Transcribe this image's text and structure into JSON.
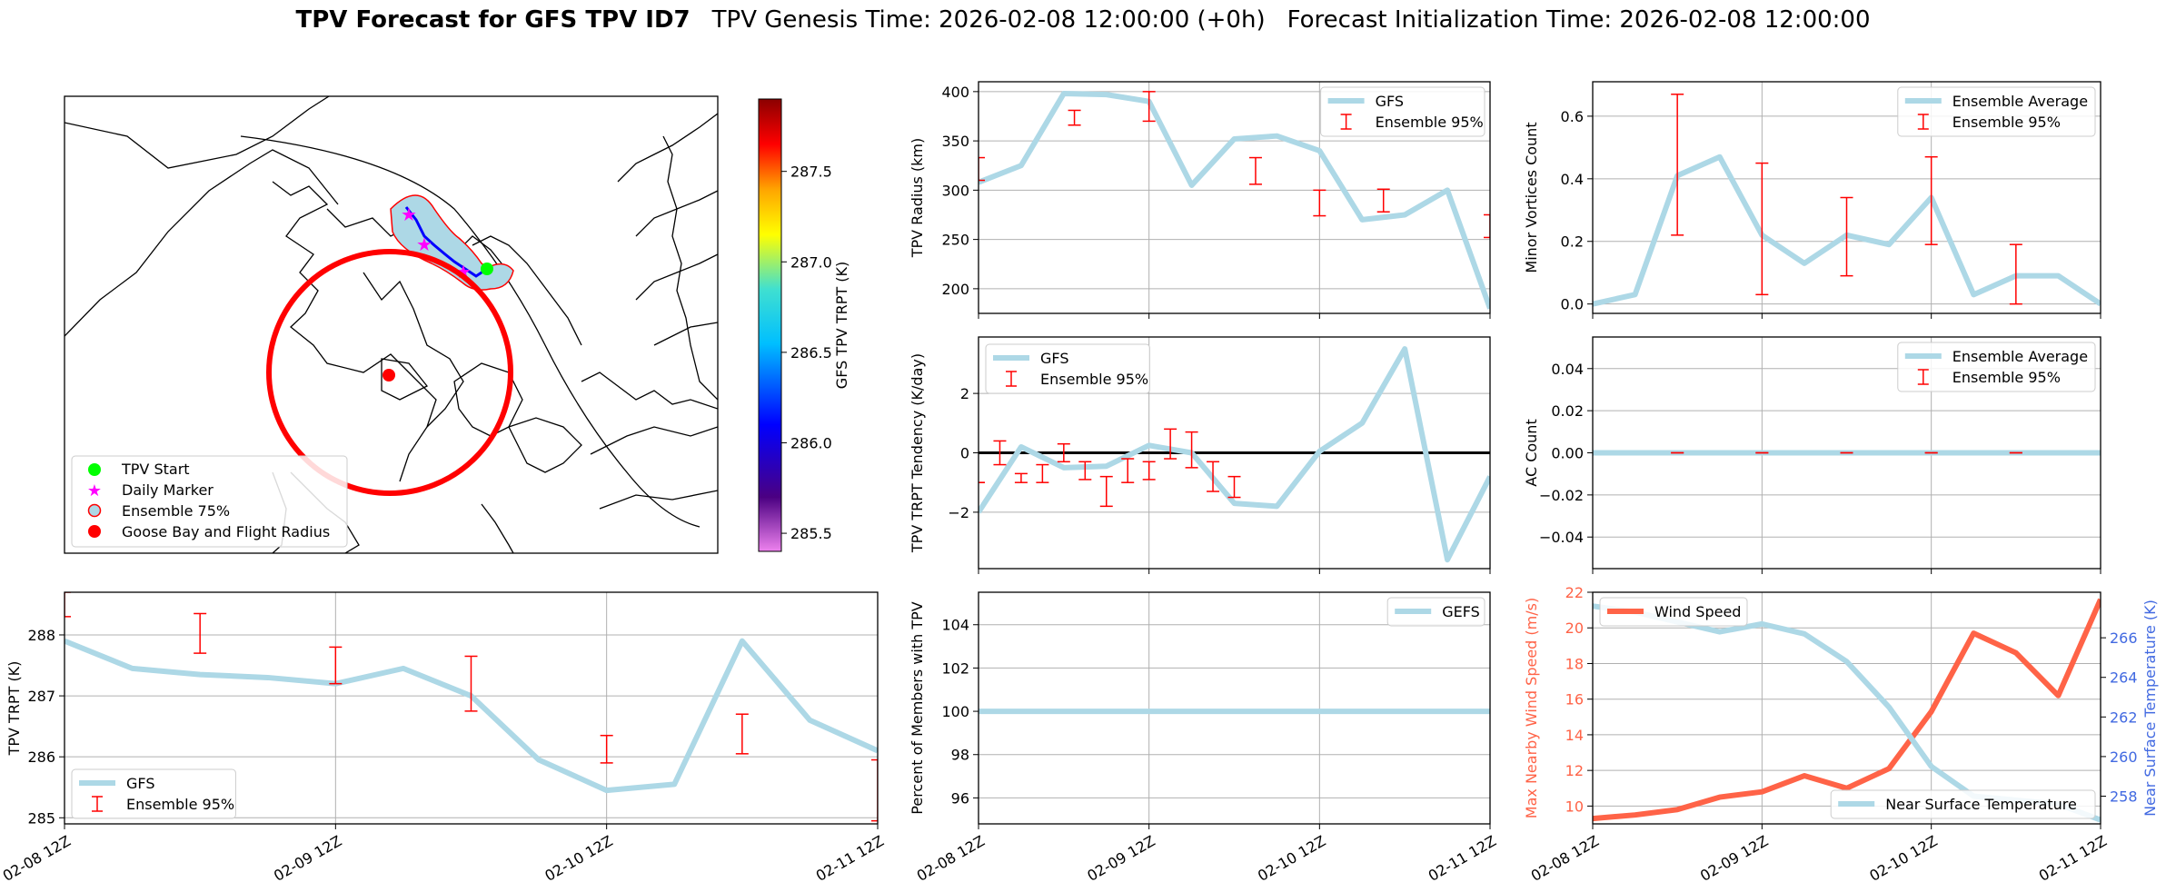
{
  "header": {
    "title_bold": "TPV Forecast for GFS TPV ID7",
    "genesis": "TPV Genesis Time: 2026-02-08 12:00:00 (+0h)",
    "init": "Forecast Initialization Time: 2026-02-08 12:00:00"
  },
  "time_ticks": [
    "02-08 12Z",
    "02-09 12Z",
    "02-10 12Z",
    "02-11 12Z"
  ],
  "colors": {
    "gfs_line": "#add8e6",
    "errorbar": "#ff0000",
    "wind": "#ff6347",
    "temp_axis": "#4169e1",
    "track": "#0000ff",
    "start": "#00ff00",
    "marker": "#ff00ff",
    "goose": "#ff0000"
  },
  "map": {
    "legend": [
      "TPV Start",
      "Daily Marker",
      "Ensemble 75%",
      "Goose Bay and Flight Radius"
    ],
    "colorbar": {
      "label": "GFS TPV TRPT (K)",
      "ticks": [
        "285.5",
        "286.0",
        "286.5",
        "287.0",
        "287.5"
      ],
      "tick_values": [
        285.5,
        286.0,
        286.5,
        287.0,
        287.5
      ],
      "range": [
        285.4,
        287.9
      ]
    }
  },
  "chart_data": [
    {
      "id": "radius",
      "type": "line",
      "ylabel": "TPV Radius (km)",
      "xlim": [
        0,
        72
      ],
      "ylim": [
        175,
        410
      ],
      "yticks": [
        200,
        250,
        300,
        350,
        400
      ],
      "legend": [
        "GFS",
        "Ensemble 95%"
      ],
      "x": [
        0,
        6,
        12,
        18,
        24,
        30,
        36,
        42,
        48,
        54,
        60,
        66,
        72
      ],
      "series": [
        {
          "name": "GFS",
          "values": [
            308,
            325,
            398,
            397,
            390,
            305,
            352,
            355,
            340,
            270,
            275,
            300,
            180
          ]
        }
      ],
      "errorbars": [
        {
          "x": 0,
          "lo": 310,
          "hi": 333
        },
        {
          "x": 13.5,
          "lo": 366,
          "hi": 381
        },
        {
          "x": 24,
          "lo": 370,
          "hi": 400
        },
        {
          "x": 39,
          "lo": 306,
          "hi": 333
        },
        {
          "x": 48,
          "lo": 274,
          "hi": 300
        },
        {
          "x": 57,
          "lo": 278,
          "hi": 301
        },
        {
          "x": 72,
          "lo": 252,
          "hi": 275
        }
      ]
    },
    {
      "id": "minor_vortices",
      "type": "line",
      "ylabel": "Minor Vortices Count",
      "xlim": [
        0,
        72
      ],
      "ylim": [
        -0.03,
        0.71
      ],
      "yticks": [
        0.0,
        0.2,
        0.4,
        0.6
      ],
      "ytick_labels": [
        "0.0",
        "0.2",
        "0.4",
        "0.6"
      ],
      "legend": [
        "Ensemble Average",
        "Ensemble 95%"
      ],
      "x": [
        0,
        6,
        12,
        18,
        24,
        30,
        36,
        42,
        48,
        54,
        60,
        66,
        72
      ],
      "series": [
        {
          "name": "Ensemble Average",
          "values": [
            0.0,
            0.03,
            0.41,
            0.47,
            0.22,
            0.13,
            0.22,
            0.19,
            0.34,
            0.03,
            0.09,
            0.09,
            0.0
          ]
        }
      ],
      "errorbars": [
        {
          "x": 12,
          "lo": 0.22,
          "hi": 0.67
        },
        {
          "x": 24,
          "lo": 0.03,
          "hi": 0.45
        },
        {
          "x": 36,
          "lo": 0.09,
          "hi": 0.34
        },
        {
          "x": 48,
          "lo": 0.19,
          "hi": 0.47
        },
        {
          "x": 60,
          "lo": 0.0,
          "hi": 0.19
        }
      ]
    },
    {
      "id": "trpt_tendency",
      "type": "line",
      "ylabel": "TPV TRPT Tendency (K/day)",
      "xlim": [
        0,
        72
      ],
      "ylim": [
        -3.9,
        3.9
      ],
      "yticks": [
        -2,
        0,
        2
      ],
      "ytick_labels": [
        "−2",
        "0",
        "2"
      ],
      "zero_line": true,
      "legend": [
        "GFS",
        "Ensemble 95%"
      ],
      "x": [
        0,
        6,
        12,
        18,
        24,
        30,
        36,
        42,
        48,
        54,
        60,
        66,
        72
      ],
      "series": [
        {
          "name": "GFS",
          "values": [
            -2.0,
            0.2,
            -0.5,
            -0.45,
            0.25,
            0.0,
            -1.7,
            -1.8,
            0.05,
            1.0,
            3.5,
            -3.6,
            -0.8
          ]
        }
      ],
      "errorbars": [
        {
          "x": 0,
          "lo": -1.0,
          "hi": -1.0
        },
        {
          "x": 3,
          "lo": -0.4,
          "hi": 0.4
        },
        {
          "x": 6,
          "lo": -1.0,
          "hi": -0.7
        },
        {
          "x": 9,
          "lo": -1.0,
          "hi": -0.4
        },
        {
          "x": 12,
          "lo": -0.3,
          "hi": 0.3
        },
        {
          "x": 15,
          "lo": -0.9,
          "hi": -0.3
        },
        {
          "x": 18,
          "lo": -1.8,
          "hi": -0.8
        },
        {
          "x": 21,
          "lo": -1.0,
          "hi": -0.2
        },
        {
          "x": 24,
          "lo": -0.9,
          "hi": -0.3
        },
        {
          "x": 27,
          "lo": -0.2,
          "hi": 0.8
        },
        {
          "x": 30,
          "lo": -0.5,
          "hi": 0.7
        },
        {
          "x": 33,
          "lo": -1.3,
          "hi": -0.3
        },
        {
          "x": 36,
          "lo": -1.5,
          "hi": -0.8
        }
      ]
    },
    {
      "id": "ac_count",
      "type": "line",
      "ylabel": "AC Count",
      "xlim": [
        0,
        72
      ],
      "ylim": [
        -0.055,
        0.055
      ],
      "yticks": [
        -0.04,
        -0.02,
        0.0,
        0.02,
        0.04
      ],
      "ytick_labels": [
        "−0.04",
        "−0.02",
        "0.00",
        "0.02",
        "0.04"
      ],
      "legend": [
        "Ensemble Average",
        "Ensemble 95%"
      ],
      "x": [
        0,
        72
      ],
      "series": [
        {
          "name": "Ensemble Average",
          "values": [
            0.0,
            0.0
          ]
        }
      ],
      "errorbars": [
        {
          "x": 12,
          "lo": 0.0,
          "hi": 0.0
        },
        {
          "x": 24,
          "lo": 0.0,
          "hi": 0.0
        },
        {
          "x": 36,
          "lo": 0.0,
          "hi": 0.0
        },
        {
          "x": 48,
          "lo": 0.0,
          "hi": 0.0
        },
        {
          "x": 60,
          "lo": 0.0,
          "hi": 0.0
        }
      ]
    },
    {
      "id": "trpt",
      "type": "line",
      "ylabel": "TPV TRPT (K)",
      "xlim": [
        0,
        72
      ],
      "ylim": [
        284.9,
        288.7
      ],
      "yticks": [
        285,
        286,
        287,
        288
      ],
      "legend": [
        "GFS",
        "Ensemble 95%"
      ],
      "xtick_labels": true,
      "x": [
        0,
        6,
        12,
        18,
        24,
        30,
        36,
        42,
        48,
        54,
        60,
        66,
        72
      ],
      "series": [
        {
          "name": "GFS",
          "values": [
            287.9,
            287.45,
            287.35,
            287.3,
            287.2,
            287.45,
            287.0,
            285.95,
            285.45,
            285.55,
            287.9,
            286.6,
            286.1
          ]
        }
      ],
      "errorbars": [
        {
          "x": 0,
          "lo": 288.3,
          "hi": 288.7
        },
        {
          "x": 12,
          "lo": 287.7,
          "hi": 288.35
        },
        {
          "x": 24,
          "lo": 287.2,
          "hi": 287.8
        },
        {
          "x": 36,
          "lo": 286.75,
          "hi": 287.65
        },
        {
          "x": 48,
          "lo": 285.9,
          "hi": 286.35
        },
        {
          "x": 60,
          "lo": 286.05,
          "hi": 286.7
        },
        {
          "x": 72,
          "lo": 284.95,
          "hi": 285.95
        }
      ]
    },
    {
      "id": "percent_members",
      "type": "line",
      "ylabel": "Percent of Members with TPV",
      "xlim": [
        0,
        72
      ],
      "ylim": [
        94.8,
        105.5
      ],
      "yticks": [
        96,
        98,
        100,
        102,
        104
      ],
      "legend": [
        "GEFS"
      ],
      "xtick_labels": true,
      "x": [
        0,
        72
      ],
      "series": [
        {
          "name": "GEFS",
          "values": [
            100,
            100
          ]
        }
      ]
    },
    {
      "id": "wind_temp",
      "type": "line",
      "ylabel": "Max Nearby Wind Speed (m/s)",
      "ylabel_right": "Near Surface Temperature (K)",
      "xlim": [
        0,
        72
      ],
      "ylim": [
        9,
        22
      ],
      "yticks": [
        10,
        12,
        14,
        16,
        18,
        20,
        22
      ],
      "ylim_right": [
        256.6,
        268.3
      ],
      "yticks_right": [
        258,
        260,
        262,
        264,
        266
      ],
      "legend": [
        "Wind Speed",
        "Near Surface Temperature"
      ],
      "xtick_labels": true,
      "x": [
        0,
        6,
        12,
        18,
        24,
        30,
        36,
        42,
        48,
        54,
        60,
        66,
        72
      ],
      "series": [
        {
          "name": "Wind Speed",
          "axis": "left",
          "values": [
            9.3,
            9.5,
            9.8,
            10.5,
            10.8,
            11.7,
            11.0,
            12.1,
            15.3,
            19.7,
            18.6,
            16.2,
            21.6
          ]
        },
        {
          "name": "Near Surface Temperature",
          "axis": "right",
          "values": [
            267.6,
            267.3,
            266.8,
            266.3,
            266.7,
            266.2,
            264.8,
            262.5,
            259.5,
            258.0,
            257.8,
            257.6,
            256.8
          ]
        }
      ]
    }
  ]
}
